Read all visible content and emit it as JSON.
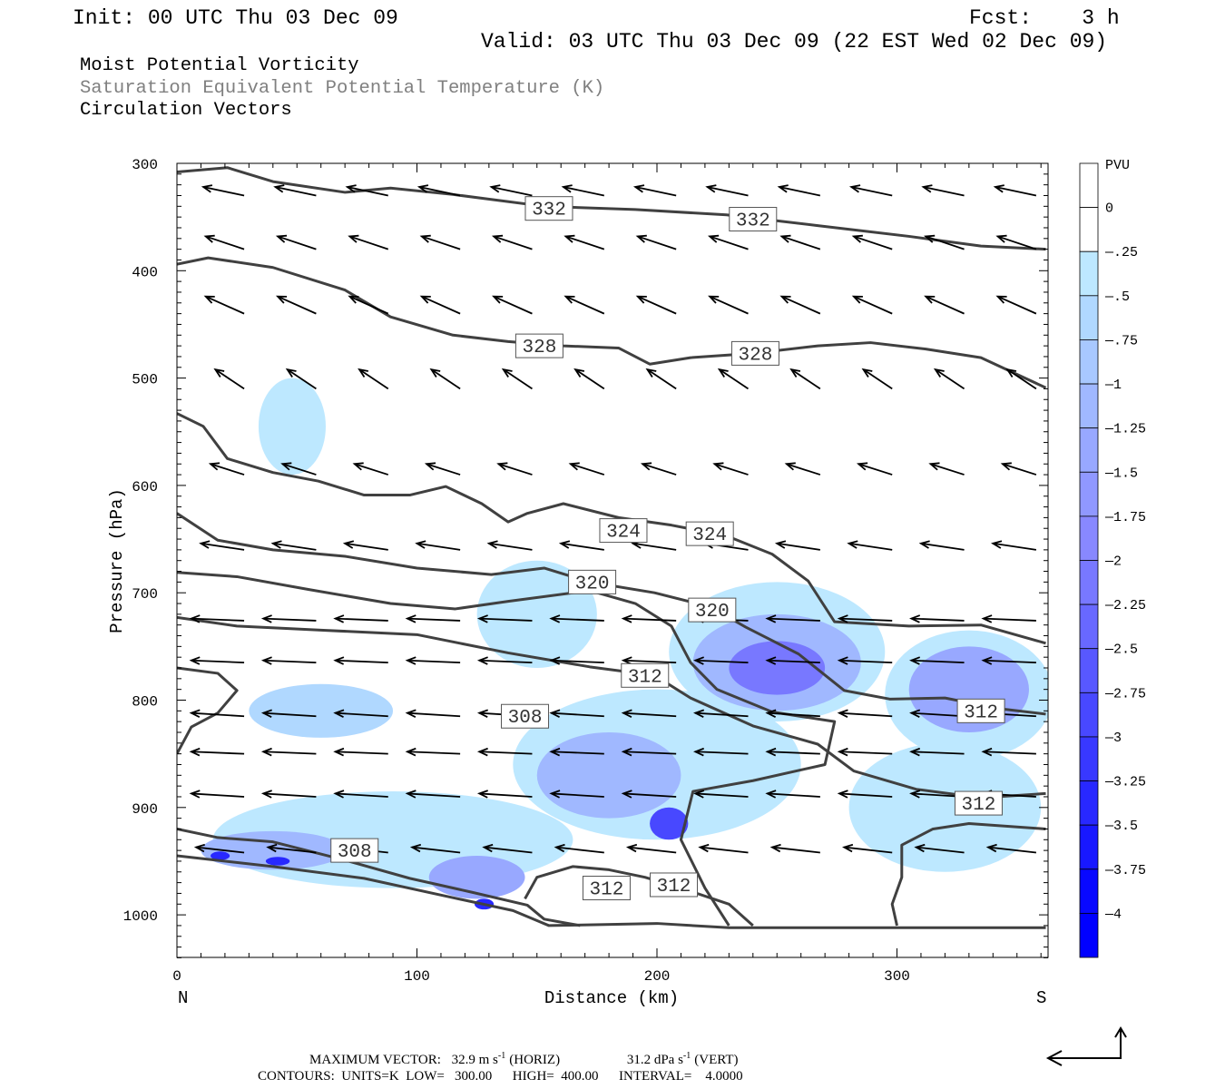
{
  "header": {
    "init": "Init: 00 UTC Thu 03 Dec 09",
    "fcst": "Fcst:    3 h",
    "valid": "Valid: 03 UTC Thu 03 Dec 09 (22 EST Wed 02 Dec 09)",
    "fields": [
      "Moist Potential Vorticity",
      "Saturation Equivalent Potential Temperature (K)",
      "Circulation Vectors"
    ]
  },
  "footer": {
    "max_vector_label": "MAXIMUM VECTOR:",
    "horiz": "32.9 m s",
    "horiz_unit": "(HORIZ)",
    "vert": "31.2 dPa s",
    "vert_unit": "(VERT)",
    "exp": "-1",
    "contours": "CONTOURS:  UNITS=K  LOW=   300.00      HIGH=  400.00      INTERVAL=    4.0000"
  },
  "colors": {
    "contour": "#404040",
    "vector": "#000000",
    "title_gray": "#808080"
  },
  "chart_data": {
    "type": "cross-section",
    "xlabel": "Distance (km)",
    "ylabel": "Pressure (hPa)",
    "xlim": [
      0,
      362
    ],
    "ylim": [
      1040,
      300
    ],
    "x_ticks": [
      "0",
      "100",
      "200",
      "300"
    ],
    "x_tick_values": [
      0,
      100,
      200,
      300
    ],
    "y_ticks": [
      "300",
      "400",
      "500",
      "600",
      "700",
      "800",
      "900",
      "1000"
    ],
    "y_tick_values": [
      300,
      400,
      500,
      600,
      700,
      800,
      900,
      1000
    ],
    "endpoints": {
      "left": "N",
      "right": "S"
    },
    "colorbar": {
      "unit": "PVU",
      "labels": [
        "0",
        "-.25",
        "-.5",
        "-.75",
        "-1",
        "-1.25",
        "-1.5",
        "-1.75",
        "-2",
        "-2.25",
        "-2.5",
        "-2.75",
        "-3",
        "-3.25",
        "-3.5",
        "-3.75",
        "-4"
      ],
      "colors": [
        "#ffffff",
        "#ffffff",
        "#bde8ff",
        "#b0d8ff",
        "#a8c8ff",
        "#a0b8ff",
        "#98a8ff",
        "#9098ff",
        "#8888ff",
        "#7878ff",
        "#6868ff",
        "#5858ff",
        "#4848ff",
        "#3838ff",
        "#2828ff",
        "#1818ff",
        "#0808ff",
        "#0000ff"
      ]
    },
    "pv_regions": [
      {
        "km": 48,
        "p": 545,
        "rkm": 14,
        "rp": 45,
        "level": 2
      },
      {
        "km": 150,
        "p": 720,
        "rkm": 25,
        "rp": 50,
        "level": 2
      },
      {
        "km": 250,
        "p": 755,
        "rkm": 45,
        "rp": 65,
        "level": 2
      },
      {
        "km": 330,
        "p": 795,
        "rkm": 35,
        "rp": 60,
        "level": 2
      },
      {
        "km": 200,
        "p": 860,
        "rkm": 60,
        "rp": 70,
        "level": 2
      },
      {
        "km": 90,
        "p": 930,
        "rkm": 75,
        "rp": 45,
        "level": 2
      },
      {
        "km": 320,
        "p": 900,
        "rkm": 40,
        "rp": 60,
        "level": 2
      },
      {
        "km": 60,
        "p": 810,
        "rkm": 30,
        "rp": 25,
        "level": 3
      },
      {
        "km": 250,
        "p": 765,
        "rkm": 35,
        "rp": 45,
        "level": 5
      },
      {
        "km": 250,
        "p": 770,
        "rkm": 20,
        "rp": 25,
        "level": 9
      },
      {
        "km": 330,
        "p": 790,
        "rkm": 25,
        "rp": 40,
        "level": 6
      },
      {
        "km": 180,
        "p": 870,
        "rkm": 30,
        "rp": 40,
        "level": 5
      },
      {
        "km": 205,
        "p": 915,
        "rkm": 8,
        "rp": 15,
        "level": 12
      },
      {
        "km": 125,
        "p": 965,
        "rkm": 20,
        "rp": 20,
        "level": 6
      },
      {
        "km": 40,
        "p": 940,
        "rkm": 30,
        "rp": 18,
        "level": 5
      },
      {
        "km": 18,
        "p": 945,
        "rkm": 4,
        "rp": 4,
        "level": 14
      },
      {
        "km": 42,
        "p": 950,
        "rkm": 5,
        "rp": 4,
        "level": 14
      },
      {
        "km": 128,
        "p": 990,
        "rkm": 4,
        "rp": 5,
        "level": 14
      }
    ],
    "theta_contours": [
      {
        "value": 332,
        "points": [
          [
            0,
            308
          ],
          [
            21,
            304
          ],
          [
            40,
            317
          ],
          [
            70,
            327
          ],
          [
            89,
            323
          ],
          [
            115,
            329
          ],
          [
            153,
            340
          ],
          [
            191,
            343
          ],
          [
            229,
            348
          ],
          [
            267,
            358
          ],
          [
            305,
            368
          ],
          [
            335,
            377
          ],
          [
            362,
            380
          ]
        ],
        "labels": [
          [
            155,
            342
          ],
          [
            240,
            352
          ]
        ]
      },
      {
        "value": 328,
        "points": [
          [
            0,
            394
          ],
          [
            13,
            388
          ],
          [
            40,
            397
          ],
          [
            70,
            418
          ],
          [
            89,
            443
          ],
          [
            115,
            460
          ],
          [
            138,
            466
          ],
          [
            161,
            470
          ],
          [
            184,
            472
          ],
          [
            197,
            487
          ],
          [
            214,
            481
          ],
          [
            240,
            477
          ],
          [
            267,
            470
          ],
          [
            289,
            467
          ],
          [
            312,
            473
          ],
          [
            335,
            481
          ],
          [
            362,
            509
          ]
        ],
        "labels": [
          [
            151,
            470
          ],
          [
            241,
            477
          ]
        ]
      },
      {
        "value": 324,
        "points": [
          [
            0,
            533
          ],
          [
            11,
            545
          ],
          [
            21,
            575
          ],
          [
            40,
            588
          ],
          [
            59,
            596
          ],
          [
            78,
            609
          ],
          [
            97,
            609
          ],
          [
            112,
            601
          ],
          [
            127,
            617
          ],
          [
            138,
            634
          ],
          [
            146,
            626
          ],
          [
            161,
            617
          ],
          [
            184,
            630
          ],
          [
            206,
            637
          ],
          [
            229,
            647
          ],
          [
            248,
            664
          ],
          [
            263,
            689
          ],
          [
            274,
            727
          ],
          [
            305,
            731
          ],
          [
            335,
            730
          ],
          [
            362,
            747
          ]
        ],
        "labels": [
          [
            186,
            642
          ],
          [
            222,
            645
          ]
        ]
      },
      {
        "value": 320,
        "points": [
          [
            0,
            626
          ],
          [
            17,
            651
          ],
          [
            40,
            660
          ],
          [
            70,
            666
          ],
          [
            100,
            677
          ],
          [
            131,
            683
          ],
          [
            153,
            677
          ],
          [
            172,
            690
          ],
          [
            199,
            700
          ],
          [
            222,
            713
          ],
          [
            237,
            732
          ],
          [
            259,
            757
          ],
          [
            278,
            791
          ],
          [
            297,
            799
          ],
          [
            320,
            798
          ],
          [
            343,
            808
          ],
          [
            362,
            813
          ]
        ],
        "labels": [
          [
            173,
            690
          ],
          [
            223,
            716
          ]
        ]
      },
      {
        "value": 316,
        "points": [
          [
            0,
            681
          ],
          [
            25,
            685
          ],
          [
            55,
            697
          ],
          [
            89,
            710
          ],
          [
            116,
            715
          ],
          [
            138,
            708
          ],
          [
            172,
            698
          ],
          [
            191,
            710
          ],
          [
            206,
            731
          ],
          [
            214,
            765
          ],
          [
            225,
            790
          ],
          [
            248,
            811
          ],
          [
            274,
            820
          ],
          [
            270,
            860
          ],
          [
            240,
            875
          ],
          [
            215,
            885
          ],
          [
            210,
            930
          ],
          [
            220,
            975
          ],
          [
            230,
            1010
          ]
        ],
        "labels": []
      },
      {
        "value": 312,
        "points": [
          [
            0,
            723
          ],
          [
            25,
            731
          ],
          [
            62,
            735
          ],
          [
            100,
            739
          ],
          [
            138,
            756
          ],
          [
            172,
            769
          ],
          [
            199,
            777
          ],
          [
            214,
            798
          ],
          [
            240,
            824
          ],
          [
            267,
            841
          ],
          [
            282,
            866
          ],
          [
            308,
            883
          ],
          [
            335,
            891
          ],
          [
            362,
            887
          ]
        ],
        "labels": [
          [
            195,
            777
          ],
          [
            335,
            810
          ],
          [
            334,
            896
          ]
        ]
      },
      {
        "value": 308,
        "points": [
          [
            0,
            770
          ],
          [
            17,
            775
          ],
          [
            25,
            791
          ],
          [
            17,
            812
          ],
          [
            6,
            825
          ],
          [
            0,
            850
          ]
        ],
        "labels": [
          [
            145,
            815
          ]
        ]
      },
      {
        "value": 308,
        "points": [
          [
            0,
            920
          ],
          [
            17,
            928
          ],
          [
            40,
            932
          ],
          [
            70,
            949
          ],
          [
            97,
            966
          ],
          [
            123,
            979
          ],
          [
            146,
            991
          ],
          [
            153,
            1004
          ],
          [
            168,
            1010
          ]
        ],
        "labels": [
          [
            74,
            940
          ]
        ]
      },
      {
        "value": 312,
        "points": [
          [
            145,
            985
          ],
          [
            150,
            965
          ],
          [
            165,
            955
          ],
          [
            180,
            958
          ],
          [
            195,
            965
          ],
          [
            210,
            975
          ],
          [
            230,
            990
          ],
          [
            240,
            1010
          ]
        ],
        "labels": [
          [
            179,
            975
          ],
          [
            207,
            972
          ]
        ]
      },
      {
        "value": 316,
        "points": [
          [
            300,
            1010
          ],
          [
            298,
            990
          ],
          [
            302,
            965
          ],
          [
            302,
            935
          ],
          [
            315,
            920
          ],
          [
            330,
            915
          ],
          [
            362,
            920
          ]
        ],
        "labels": []
      },
      {
        "value": 304,
        "points": [
          [
            0,
            945
          ],
          [
            40,
            955
          ],
          [
            78,
            966
          ],
          [
            115,
            984
          ],
          [
            140,
            996
          ],
          [
            155,
            1010
          ],
          [
            200,
            1008
          ],
          [
            230,
            1012
          ],
          [
            362,
            1012
          ]
        ],
        "labels": []
      }
    ],
    "vector_rows": [
      {
        "p": 330,
        "du": -17,
        "dp": -8,
        "xs": [
          20,
          50,
          80,
          110,
          140,
          170,
          200,
          230,
          260,
          290,
          320,
          350
        ]
      },
      {
        "p": 380,
        "du": -16,
        "dp": -12,
        "xs": [
          20,
          50,
          80,
          110,
          140,
          170,
          200,
          230,
          260,
          290,
          320,
          350
        ]
      },
      {
        "p": 440,
        "du": -16,
        "dp": -16,
        "xs": [
          20,
          50,
          80,
          110,
          140,
          170,
          200,
          230,
          260,
          290,
          320,
          350
        ]
      },
      {
        "p": 510,
        "du": -12,
        "dp": -18,
        "xs": [
          20,
          50,
          80,
          110,
          140,
          170,
          200,
          230,
          260,
          290,
          320,
          350
        ]
      },
      {
        "p": 590,
        "du": -14,
        "dp": -10,
        "xs": [
          20,
          50,
          80,
          110,
          140,
          170,
          200,
          230,
          260,
          290,
          320,
          350
        ]
      },
      {
        "p": 660,
        "du": -18,
        "dp": -6,
        "xs": [
          20,
          50,
          80,
          110,
          140,
          170,
          200,
          230,
          260,
          290,
          320,
          350
        ]
      },
      {
        "p": 726,
        "du": -22,
        "dp": -2,
        "xs": [
          20,
          50,
          80,
          110,
          140,
          170,
          200,
          230,
          260,
          290,
          320,
          350
        ]
      },
      {
        "p": 765,
        "du": -22,
        "dp": -2,
        "xs": [
          20,
          50,
          80,
          110,
          140,
          170,
          200,
          230,
          260,
          290,
          320,
          350
        ]
      },
      {
        "p": 815,
        "du": -22,
        "dp": -3,
        "xs": [
          20,
          50,
          80,
          110,
          140,
          170,
          200,
          230,
          260,
          290,
          320,
          350
        ]
      },
      {
        "p": 850,
        "du": -22,
        "dp": -2,
        "xs": [
          20,
          50,
          80,
          110,
          140,
          170,
          200,
          230,
          260,
          290,
          320,
          350
        ]
      },
      {
        "p": 890,
        "du": -22,
        "dp": -3,
        "xs": [
          20,
          50,
          80,
          110,
          140,
          170,
          200,
          230,
          260,
          290,
          320,
          350
        ]
      },
      {
        "p": 942,
        "du": -20,
        "dp": -5,
        "xs": [
          20,
          50,
          80,
          110,
          140,
          170,
          200,
          230,
          260,
          290,
          320,
          350
        ]
      }
    ]
  }
}
